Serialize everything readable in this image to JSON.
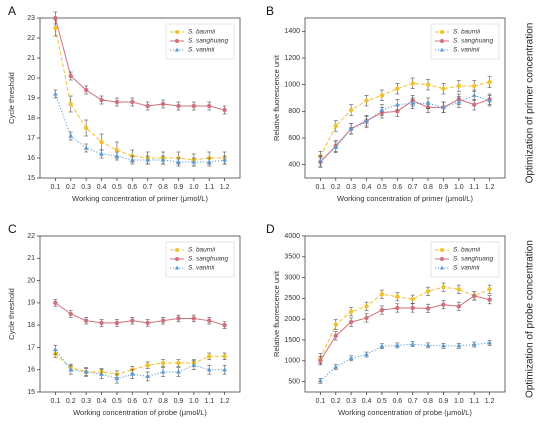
{
  "chart_data": [
    {
      "type": "line",
      "label": "A",
      "xlabel": "Working concentration of primer (μmol/L)",
      "ylabel": "Cycle threshold",
      "x": [
        0.1,
        0.2,
        0.3,
        0.4,
        0.5,
        0.6,
        0.7,
        0.8,
        0.9,
        1,
        1.1,
        1.2
      ],
      "xlim": [
        0,
        1.3
      ],
      "xticks": [
        0.1,
        0.2,
        0.3,
        0.4,
        0.5,
        0.6,
        0.7,
        0.8,
        0.9,
        {
          "value": 1,
          "label": "1.0"
        },
        1.1,
        1.2
      ],
      "ylim": [
        15,
        23
      ],
      "yticks": [
        15,
        16,
        17,
        18,
        19,
        20,
        21,
        22,
        23
      ],
      "legend": "upper right",
      "series": [
        {
          "name": "S. baumii",
          "color": "#f2c12e",
          "linestyle": "dashed",
          "marker": "circle",
          "values": [
            22.5,
            18.7,
            17.5,
            16.8,
            16.4,
            16.1,
            16.0,
            16.0,
            16.0,
            15.9,
            16.0,
            16.0
          ],
          "errors": [
            0.4,
            0.4,
            0.4,
            0.4,
            0.4,
            0.3,
            0.3,
            0.3,
            0.3,
            0.3,
            0.3,
            0.3
          ]
        },
        {
          "name": "S. sanghuang",
          "color": "#d0707c",
          "linestyle": "solid",
          "marker": "circle",
          "values": [
            23.0,
            20.1,
            19.4,
            18.9,
            18.8,
            18.8,
            18.6,
            18.7,
            18.6,
            18.6,
            18.6,
            18.4
          ],
          "errors": [
            0.3,
            0.2,
            0.2,
            0.2,
            0.2,
            0.2,
            0.2,
            0.2,
            0.2,
            0.2,
            0.2,
            0.2
          ]
        },
        {
          "name": "S. vaninii",
          "color": "#5b9bd5",
          "linestyle": "dotted",
          "marker": "triangle",
          "values": [
            19.2,
            17.1,
            16.5,
            16.2,
            16.1,
            15.9,
            15.9,
            15.9,
            15.8,
            15.8,
            15.8,
            15.9
          ],
          "errors": [
            0.2,
            0.2,
            0.2,
            0.2,
            0.2,
            0.2,
            0.2,
            0.2,
            0.2,
            0.2,
            0.2,
            0.2
          ]
        }
      ]
    },
    {
      "type": "line",
      "label": "B",
      "xlabel": "Working concentration of primer (μmol/L)",
      "ylabel": "Relative fluorescence unit",
      "annotation": "Optimization of primer concentration",
      "x": [
        0.1,
        0.2,
        0.3,
        0.4,
        0.5,
        0.6,
        0.7,
        0.8,
        0.9,
        1,
        1.1,
        1.2
      ],
      "xlim": [
        0,
        1.3
      ],
      "xticks": [
        0.1,
        0.2,
        0.3,
        0.4,
        0.5,
        0.6,
        0.7,
        0.8,
        0.9,
        {
          "value": 1,
          "label": "1.0"
        },
        1.1,
        1.2
      ],
      "ylim": [
        300,
        1500
      ],
      "yticks": [
        400,
        600,
        800,
        1000,
        1200,
        1400
      ],
      "legend": "upper right",
      "series": [
        {
          "name": "S. baumii",
          "color": "#f2c12e",
          "linestyle": "dashed",
          "marker": "circle",
          "values": [
            460,
            690,
            810,
            880,
            920,
            970,
            1010,
            1000,
            970,
            990,
            990,
            1020
          ],
          "errors": [
            40,
            40,
            40,
            40,
            40,
            40,
            40,
            40,
            40,
            40,
            40,
            40
          ]
        },
        {
          "name": "S. sanghuang",
          "color": "#d0707c",
          "linestyle": "solid",
          "marker": "circle",
          "values": [
            420,
            540,
            670,
            730,
            790,
            800,
            880,
            830,
            830,
            890,
            850,
            890
          ],
          "errors": [
            40,
            40,
            40,
            40,
            40,
            40,
            40,
            40,
            40,
            40,
            40,
            40
          ]
        },
        {
          "name": "S. vaninii",
          "color": "#5b9bd5",
          "linestyle": "dotted",
          "marker": "triangle",
          "values": [
            430,
            530,
            670,
            720,
            810,
            850,
            860,
            860,
            830,
            870,
            920,
            880
          ],
          "errors": [
            40,
            40,
            40,
            40,
            40,
            40,
            40,
            40,
            40,
            40,
            40,
            40
          ]
        }
      ]
    },
    {
      "type": "line",
      "label": "C",
      "xlabel": "Working concentration of probe (μmol/L)",
      "ylabel": "Cycle threshold",
      "x": [
        0.1,
        0.2,
        0.3,
        0.4,
        0.5,
        0.6,
        0.7,
        0.8,
        0.9,
        1,
        1.1,
        1.2
      ],
      "xlim": [
        0,
        1.3
      ],
      "xticks": [
        0.1,
        0.2,
        0.3,
        0.4,
        0.5,
        0.6,
        0.7,
        0.8,
        0.9,
        {
          "value": 1,
          "label": "1.0"
        },
        1.1,
        1.2
      ],
      "ylim": [
        15,
        22
      ],
      "yticks": [
        15,
        16,
        17,
        18,
        19,
        20,
        21,
        22
      ],
      "legend": "upper right",
      "series": [
        {
          "name": "S. baumii",
          "color": "#f2c12e",
          "linestyle": "dashed",
          "marker": "circle",
          "values": [
            16.7,
            16.1,
            15.9,
            15.9,
            15.8,
            16.0,
            16.2,
            16.3,
            16.3,
            16.3,
            16.6,
            16.6
          ],
          "errors": [
            0.15,
            0.15,
            0.15,
            0.15,
            0.15,
            0.15,
            0.15,
            0.15,
            0.15,
            0.15,
            0.15,
            0.15
          ]
        },
        {
          "name": "S. sanghuang",
          "color": "#d0707c",
          "linestyle": "solid",
          "marker": "circle",
          "values": [
            19.0,
            18.5,
            18.2,
            18.1,
            18.1,
            18.2,
            18.1,
            18.2,
            18.3,
            18.3,
            18.2,
            18.0
          ],
          "errors": [
            0.15,
            0.15,
            0.15,
            0.15,
            0.15,
            0.15,
            0.15,
            0.15,
            0.15,
            0.15,
            0.15,
            0.15
          ]
        },
        {
          "name": "S. vaninii",
          "color": "#5b9bd5",
          "linestyle": "dotted",
          "marker": "triangle",
          "values": [
            16.9,
            16.0,
            15.9,
            15.8,
            15.6,
            15.8,
            15.7,
            15.9,
            15.9,
            16.2,
            16.0,
            16.0
          ],
          "errors": [
            0.2,
            0.2,
            0.2,
            0.2,
            0.2,
            0.2,
            0.2,
            0.2,
            0.2,
            0.2,
            0.2,
            0.2
          ]
        }
      ]
    },
    {
      "type": "line",
      "label": "D",
      "xlabel": "Working concentration of probe (μmol/L)",
      "ylabel": "Relative fluorescence unit",
      "annotation": "Optimization of probe concentration",
      "x": [
        0.1,
        0.2,
        0.3,
        0.4,
        0.5,
        0.6,
        0.7,
        0.8,
        0.9,
        1,
        1.1,
        1.2
      ],
      "xlim": [
        0,
        1.3
      ],
      "xticks": [
        0.1,
        0.2,
        0.3,
        0.4,
        0.5,
        0.6,
        0.7,
        0.8,
        0.9,
        {
          "value": 1,
          "label": "1.0"
        },
        1.1,
        1.2
      ],
      "ylim": [
        250,
        4000
      ],
      "yticks": [
        500,
        1000,
        1500,
        2000,
        2500,
        3000,
        3500,
        4000
      ],
      "legend": "upper right",
      "series": [
        {
          "name": "S. baumii",
          "color": "#f2c12e",
          "linestyle": "dashed",
          "marker": "circle",
          "values": [
            1050,
            1870,
            2180,
            2310,
            2600,
            2540,
            2480,
            2670,
            2770,
            2720,
            2560,
            2720
          ],
          "errors": [
            120,
            120,
            100,
            100,
            100,
            100,
            100,
            100,
            100,
            100,
            100,
            100
          ]
        },
        {
          "name": "S. sanghuang",
          "color": "#d0707c",
          "linestyle": "solid",
          "marker": "circle",
          "values": [
            1000,
            1600,
            1930,
            2030,
            2220,
            2270,
            2270,
            2260,
            2350,
            2310,
            2560,
            2470
          ],
          "errors": [
            100,
            100,
            100,
            100,
            100,
            100,
            100,
            100,
            100,
            100,
            100,
            100
          ]
        },
        {
          "name": "S. vaninii",
          "color": "#5b9bd5",
          "linestyle": "dotted",
          "marker": "triangle",
          "values": [
            520,
            850,
            1060,
            1150,
            1350,
            1370,
            1400,
            1370,
            1360,
            1360,
            1390,
            1430
          ],
          "errors": [
            60,
            60,
            60,
            60,
            60,
            60,
            60,
            60,
            60,
            60,
            60,
            60
          ]
        }
      ]
    }
  ]
}
